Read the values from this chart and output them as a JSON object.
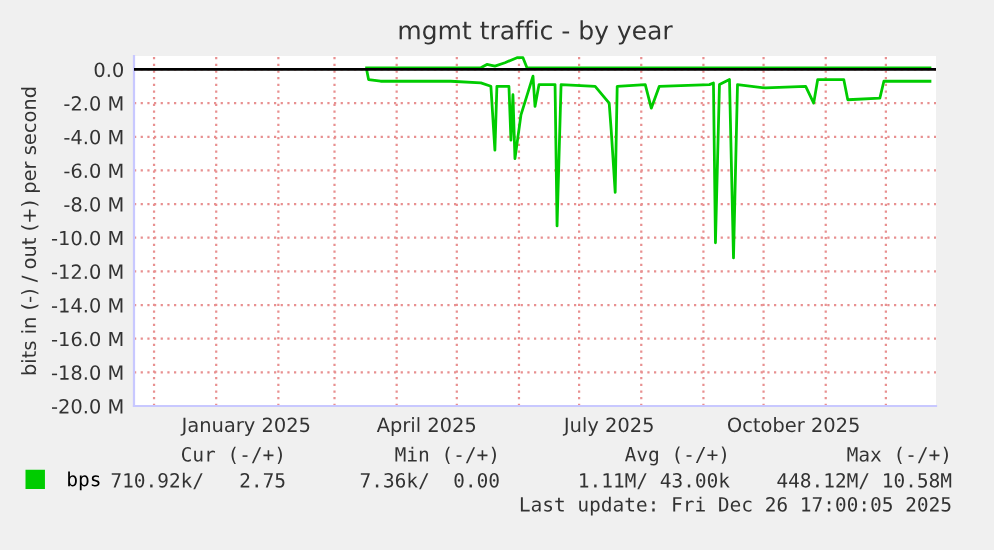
{
  "chart_data": {
    "type": "line",
    "title": "mgmt traffic - by year",
    "ylabel": "bits in (-) / out (+) per second",
    "xlim": [
      "2024-11-21",
      "2025-12-26"
    ],
    "xticks": [
      {
        "value": "2024-12-01",
        "label": null
      },
      {
        "value": "2025-01-01",
        "label": null
      },
      {
        "value": "2025-02-01",
        "label": null
      },
      {
        "value": "2025-03-01",
        "label": null
      },
      {
        "value": "2025-04-01",
        "label": null
      },
      {
        "value": "2025-05-01",
        "label": null
      },
      {
        "value": "2025-06-01",
        "label": null
      },
      {
        "value": "2025-07-01",
        "label": null
      },
      {
        "value": "2025-08-01",
        "label": null
      },
      {
        "value": "2025-09-01",
        "label": null
      },
      {
        "value": "2025-10-01",
        "label": null
      },
      {
        "value": "2025-11-01",
        "label": null
      },
      {
        "value": "2025-12-01",
        "label": null
      },
      {
        "value": "2025-01-16",
        "label": "January 2025"
      },
      {
        "value": "2025-04-16",
        "label": "April 2025"
      },
      {
        "value": "2025-07-16",
        "label": "July 2025"
      },
      {
        "value": "2025-10-16",
        "label": "October 2025"
      }
    ],
    "ylim": [
      -20,
      0.8
    ],
    "yticks": [
      {
        "value": 0,
        "label": "0.0"
      },
      {
        "value": -2,
        "label": "-2.0 M"
      },
      {
        "value": -4,
        "label": "-4.0 M"
      },
      {
        "value": -6,
        "label": "-6.0 M"
      },
      {
        "value": -8,
        "label": "-8.0 M"
      },
      {
        "value": -10,
        "label": "-10.0 M"
      },
      {
        "value": -12,
        "label": "-12.0 M"
      },
      {
        "value": -14,
        "label": "-14.0 M"
      },
      {
        "value": -16,
        "label": "-16.0 M"
      },
      {
        "value": -18,
        "label": "-18.0 M"
      },
      {
        "value": -20,
        "label": "-20.0 M"
      }
    ],
    "grid": true,
    "legend": "bottom left",
    "ref_lines": [
      {
        "axis": "y",
        "value": 0,
        "color": "#000000"
      }
    ],
    "series": [
      {
        "name": "bps",
        "color": "#00cc00",
        "x": [
          "2025-03-17",
          "2025-03-18",
          "2025-03-24",
          "2025-04-28",
          "2025-05-13",
          "2025-05-18",
          "2025-05-20",
          "2025-05-21",
          "2025-05-27",
          "2025-05-28",
          "2025-05-29",
          "2025-05-30",
          "2025-06-02",
          "2025-06-08",
          "2025-06-09",
          "2025-06-11",
          "2025-06-19",
          "2025-06-20",
          "2025-06-22",
          "2025-07-09",
          "2025-07-16",
          "2025-07-17",
          "2025-07-19",
          "2025-07-20",
          "2025-08-03",
          "2025-08-06",
          "2025-08-10",
          "2025-09-04",
          "2025-09-06",
          "2025-09-07",
          "2025-09-09",
          "2025-09-14",
          "2025-09-16",
          "2025-09-18",
          "2025-10-02",
          "2025-10-22",
          "2025-10-26",
          "2025-10-28",
          "2025-11-10",
          "2025-11-12",
          "2025-11-28",
          "2025-11-30",
          "2025-12-23"
        ],
        "values": [
          0.0,
          -0.6,
          -0.7,
          -0.7,
          -0.8,
          -1.0,
          -4.8,
          -1.0,
          -1.0,
          -4.2,
          -1.5,
          -5.3,
          -2.7,
          -0.4,
          -2.2,
          -0.9,
          -0.9,
          -9.3,
          -0.9,
          -1.0,
          -2.0,
          -3.6,
          -7.3,
          -1.0,
          -0.9,
          -2.3,
          -1.0,
          -0.9,
          -0.8,
          -10.3,
          -0.9,
          -0.6,
          -11.2,
          -0.9,
          -1.1,
          -1.0,
          -2.0,
          -0.6,
          -0.6,
          -1.8,
          -1.7,
          -0.7,
          -0.7
        ]
      },
      {
        "color": "#00cc00",
        "x": [
          "2025-03-17",
          "2025-05-13",
          "2025-05-16",
          "2025-05-20",
          "2025-05-25",
          "2025-05-31",
          "2025-06-03",
          "2025-06-05",
          "2025-12-23"
        ],
        "values": [
          0.1,
          0.1,
          0.3,
          0.2,
          0.4,
          0.7,
          0.7,
          0.1,
          0.1
        ]
      }
    ],
    "annotations": [
      "Cur (-/+)",
      "Min (-/+)",
      "Avg (-/+)",
      "Max (-/+)",
      "710.92k/   2.75",
      "7.36k/  0.00",
      "1.11M/ 43.00k",
      "448.12M/ 10.58M",
      "Last update: Fri Dec 26 17:00:05 2025"
    ]
  }
}
